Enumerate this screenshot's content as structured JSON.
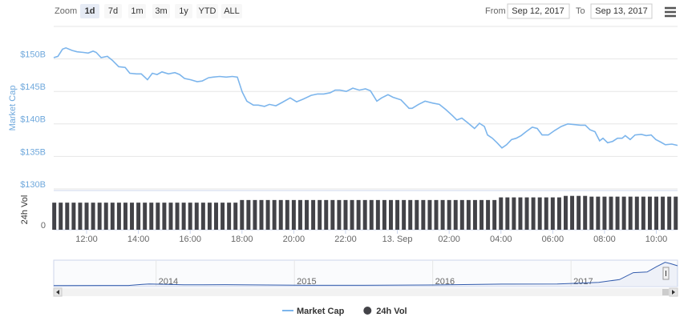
{
  "toolbar": {
    "zoom_label": "Zoom",
    "buttons": [
      "1d",
      "7d",
      "1m",
      "3m",
      "1y",
      "YTD",
      "ALL"
    ],
    "from_label": "From",
    "from": "Sep 12, 2017",
    "to_label": "To",
    "to": "Sep 13, 2017"
  },
  "chart_data": [
    {
      "type": "line",
      "ylabel": "Market Cap",
      "x": [
        10.73,
        10.89,
        11.07,
        11.2,
        11.44,
        11.63,
        11.88,
        12.06,
        12.25,
        12.37,
        12.56,
        12.8,
        12.99,
        13.24,
        13.49,
        13.67,
        13.92,
        14.11,
        14.35,
        14.54,
        14.72,
        14.91,
        15.16,
        15.41,
        15.59,
        15.78,
        16.02,
        16.27,
        16.46,
        16.71,
        16.89,
        17.14,
        17.39,
        17.63,
        17.82,
        18.01,
        18.19,
        18.44,
        18.63,
        18.87,
        19.06,
        19.31,
        19.55,
        19.86,
        20.11,
        20.36,
        20.67,
        20.92,
        21.16,
        21.41,
        21.6,
        21.78,
        22.03,
        22.28,
        22.53,
        22.77,
        22.96,
        23.21,
        23.39,
        23.64,
        23.83,
        24.14,
        24.45,
        24.57,
        24.82,
        25.07,
        25.37,
        25.62,
        25.87,
        26.12,
        26.3,
        26.49,
        26.74,
        26.98,
        27.17,
        27.36,
        27.48,
        27.67,
        27.85,
        28.04,
        28.22,
        28.41,
        28.59,
        28.78,
        28.97,
        29.21,
        29.4,
        29.59,
        29.83,
        30.08,
        30.33,
        30.58,
        30.82,
        31.07,
        31.26,
        31.44,
        31.63,
        31.81,
        31.94,
        32.12,
        32.31,
        32.5,
        32.68,
        32.8,
        32.99,
        33.18,
        33.42,
        33.61,
        33.8,
        33.98,
        34.17,
        34.35,
        34.6,
        34.82
      ],
      "series": [
        {
          "name": "Market Cap",
          "color": "#7cb5ec",
          "values": [
            150.2,
            150.4,
            151.5,
            151.7,
            151.3,
            151.1,
            151.0,
            150.9,
            151.2,
            151.0,
            150.2,
            150.4,
            149.8,
            148.8,
            148.7,
            147.8,
            147.7,
            147.7,
            146.8,
            147.8,
            147.6,
            148.0,
            147.7,
            147.9,
            147.6,
            147.0,
            146.8,
            146.5,
            146.6,
            147.1,
            147.2,
            147.3,
            147.2,
            147.3,
            147.2,
            144.9,
            143.5,
            142.9,
            142.9,
            142.7,
            143.0,
            142.8,
            143.3,
            144.0,
            143.4,
            143.8,
            144.4,
            144.6,
            144.6,
            144.8,
            145.2,
            145.2,
            145.0,
            145.5,
            145.2,
            145.4,
            145.1,
            143.5,
            144.0,
            144.5,
            144.1,
            143.7,
            142.4,
            142.4,
            143.0,
            143.5,
            143.2,
            143.0,
            142.2,
            141.3,
            140.6,
            140.9,
            140.1,
            139.3,
            140.1,
            139.6,
            138.3,
            137.8,
            137.1,
            136.3,
            136.8,
            137.6,
            137.8,
            138.2,
            138.8,
            139.5,
            139.3,
            138.3,
            138.3,
            139.0,
            139.6,
            140.0,
            139.9,
            139.8,
            139.8,
            139.1,
            138.8,
            137.4,
            137.8,
            137.1,
            137.3,
            137.8,
            137.8,
            138.2,
            137.6,
            138.3,
            138.4,
            138.2,
            138.3,
            137.6,
            137.2,
            136.8,
            136.9,
            136.7
          ]
        }
      ],
      "xlim": [
        10.73,
        34.82
      ],
      "xticks": [
        {
          "value": 12,
          "label": "12:00"
        },
        {
          "value": 14,
          "label": "14:00"
        },
        {
          "value": 16,
          "label": "16:00"
        },
        {
          "value": 18,
          "label": "18:00"
        },
        {
          "value": 20,
          "label": "20:00"
        },
        {
          "value": 22,
          "label": "22:00"
        },
        {
          "value": 24,
          "label": "13. Sep"
        },
        {
          "value": 26,
          "label": "02:00"
        },
        {
          "value": 28,
          "label": "04:00"
        },
        {
          "value": 30,
          "label": "06:00"
        },
        {
          "value": 32,
          "label": "08:00"
        },
        {
          "value": 34,
          "label": "10:00"
        }
      ],
      "ylim": [
        130,
        155
      ],
      "yticks": [
        {
          "value": 130,
          "label": "$130B"
        },
        {
          "value": 135,
          "label": "$135B"
        },
        {
          "value": 140,
          "label": "$140B"
        },
        {
          "value": 145,
          "label": "$145B"
        },
        {
          "value": 150,
          "label": "$150B"
        }
      ],
      "grid": true
    },
    {
      "type": "bar",
      "ylabel": "24h Vol",
      "x": [
        10.75,
        11,
        11.25,
        11.5,
        11.75,
        12,
        12.25,
        12.5,
        12.75,
        13,
        13.25,
        13.5,
        13.75,
        14,
        14.25,
        14.5,
        14.75,
        15,
        15.25,
        15.5,
        15.75,
        16,
        16.25,
        16.5,
        16.75,
        17,
        17.25,
        17.5,
        17.75,
        18,
        18.25,
        18.5,
        18.75,
        19,
        19.25,
        19.5,
        19.75,
        20,
        20.25,
        20.5,
        20.75,
        21,
        21.25,
        21.5,
        21.75,
        22,
        22.25,
        22.5,
        22.75,
        23,
        23.25,
        23.5,
        23.75,
        24,
        24.25,
        24.5,
        24.75,
        25,
        25.25,
        25.5,
        25.75,
        26,
        26.25,
        26.5,
        26.75,
        27,
        27.25,
        27.5,
        27.75,
        28,
        28.25,
        28.5,
        28.75,
        29,
        29.25,
        29.5,
        29.75,
        30,
        30.25,
        30.5,
        30.75,
        31,
        31.25,
        31.5,
        31.75,
        32,
        32.25,
        32.5,
        32.75,
        33,
        33.25,
        33.5,
        33.75,
        34,
        34.25,
        34.5,
        34.75
      ],
      "series": [
        {
          "name": "24h Vol",
          "color": "#434348",
          "values": [
            72,
            72,
            72,
            72,
            72,
            72,
            72,
            72,
            72,
            72,
            72,
            72,
            72,
            72,
            72,
            72,
            72,
            72,
            72,
            72,
            72,
            72,
            72,
            72,
            72,
            72,
            72,
            72,
            72,
            79,
            79,
            79,
            79,
            79,
            79,
            79,
            79,
            79,
            79,
            79,
            79,
            79,
            79,
            79,
            79,
            79,
            79,
            79,
            79,
            79,
            79,
            79,
            79,
            79,
            79,
            79,
            79,
            79,
            79,
            79,
            79,
            79,
            79,
            79,
            79,
            79,
            79,
            79,
            79,
            86,
            86,
            86,
            86,
            86,
            86,
            86,
            86,
            86,
            86,
            90,
            90,
            90,
            90,
            88,
            88,
            88,
            88,
            88,
            88,
            88,
            88,
            88,
            88,
            88,
            88,
            88,
            88
          ]
        }
      ],
      "xlim": [
        10.73,
        34.82
      ],
      "ylim": [
        0,
        100
      ],
      "yticks": [
        0
      ]
    },
    {
      "type": "area",
      "x": [
        2013.26,
        2013.8,
        2013.9,
        2013.95,
        2014.05,
        2014.2,
        2014.5,
        2014.9,
        2015.0,
        2015.5,
        2016.0,
        2016.5,
        2016.9,
        2017.0,
        2017.2,
        2017.35,
        2017.45,
        2017.55,
        2017.62,
        2017.68,
        2017.72,
        2017.77
      ],
      "series": [
        {
          "color": "#335cad",
          "values": [
            1.5,
            2.5,
            10,
            13,
            11,
            7,
            8,
            5,
            4,
            3.5,
            6,
            12,
            13,
            17,
            25,
            45,
            95,
            100,
            140,
            170,
            160,
            145
          ]
        }
      ],
      "xlim": [
        2013.26,
        2017.77
      ],
      "ylim": [
        0,
        180
      ],
      "xticks": [
        2014,
        2015,
        2016,
        2017
      ]
    }
  ]
}
